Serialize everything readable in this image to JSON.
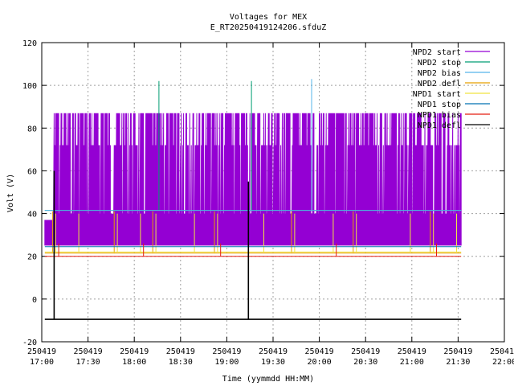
{
  "chart_data": {
    "type": "line",
    "title": "Voltages for MEX",
    "subtitle": "E_RT20250419124206.sfduZ",
    "xlabel": "Time (yymmdd HH:MM)",
    "ylabel": "Volt (V)",
    "ylim": [
      -20,
      120
    ],
    "yticks": [
      -20,
      0,
      20,
      40,
      60,
      80,
      100,
      120
    ],
    "xlim": [
      "2025-04-19 17:00",
      "2025-04-19 22:00"
    ],
    "xticks": [
      {
        "date": "250419",
        "time": "17:00"
      },
      {
        "date": "250419",
        "time": "17:30"
      },
      {
        "date": "250419",
        "time": "18:00"
      },
      {
        "date": "250419",
        "time": "18:30"
      },
      {
        "date": "250419",
        "time": "19:00"
      },
      {
        "date": "250419",
        "time": "19:30"
      },
      {
        "date": "250419",
        "time": "20:00"
      },
      {
        "date": "250419",
        "time": "20:30"
      },
      {
        "date": "250419",
        "time": "21:00"
      },
      {
        "date": "250419",
        "time": "21:30"
      },
      {
        "date": "250419",
        "time": "22:00"
      }
    ],
    "grid": true,
    "legend_position": "top-right",
    "time_range": [
      "2025-04-19 17:02",
      "2025-04-19 21:32"
    ],
    "series": [
      {
        "name": "NPD2 start",
        "color": "#9400d3",
        "base": 25,
        "levels": [
          40,
          72,
          87
        ],
        "spikes": [],
        "note_values": "oscillates 25-87 V"
      },
      {
        "name": "NPD2 stop",
        "color": "#009e73",
        "base": 41.5,
        "spikes": [
          {
            "time": "2025-04-19 18:16",
            "value": 102
          },
          {
            "time": "2025-04-19 19:16",
            "value": 102
          }
        ]
      },
      {
        "name": "NPD2 bias",
        "color": "#56b4e9",
        "base": 41.5,
        "spikes": [
          {
            "time": "2025-04-19 19:55",
            "value": 103
          }
        ]
      },
      {
        "name": "NPD2 defl",
        "color": "#e69f00",
        "base": 21.5,
        "spikes": []
      },
      {
        "name": "NPD1 start",
        "color": "#f0e442",
        "base": 22,
        "spikes": []
      },
      {
        "name": "NPD1 stop",
        "color": "#0072b2",
        "base": 24.5,
        "spikes": []
      },
      {
        "name": "NPD1 bias",
        "color": "#e51e10",
        "base": 20,
        "spikes": []
      },
      {
        "name": "NPD1 defl",
        "color": "#000000",
        "base": -9.5,
        "spikes": [
          {
            "time": "2025-04-19 17:08",
            "value": 60
          },
          {
            "time": "2025-04-19 19:14",
            "value": 55
          }
        ]
      }
    ]
  }
}
